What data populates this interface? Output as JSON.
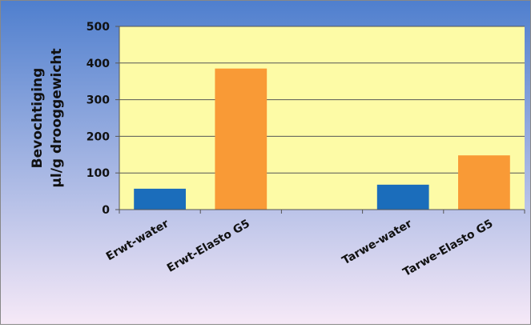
{
  "chart_data": {
    "type": "bar",
    "categories": [
      "Erwt-water",
      "Erwt-Elasto G5",
      "",
      "Tarwe-water",
      "Tarwe-Elasto G5"
    ],
    "values": [
      57,
      385,
      null,
      68,
      148
    ],
    "ylabel_lines": [
      "Bevochtiging",
      "µl/g drooggewicht"
    ],
    "ylim": [
      0,
      500
    ],
    "yticks": [
      0,
      100,
      200,
      300,
      400,
      500
    ],
    "grid": true,
    "legend": "none"
  },
  "colors": {
    "background_top": "#4f7fce",
    "background_bottom": "#f6e9f7",
    "plot_area": "#fdfba6",
    "gridline": "#555555",
    "water_bar": "#1b6dbb",
    "elasto_bar": "#f99a36",
    "text": "#111111"
  },
  "bar_colors": [
    "#1b6dbb",
    "#f99a36",
    null,
    "#1b6dbb",
    "#f99a36"
  ]
}
